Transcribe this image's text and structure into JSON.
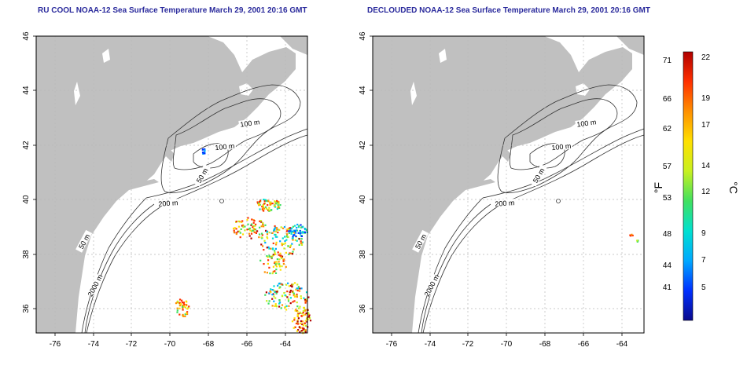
{
  "panels": [
    {
      "title": "RU COOL NOAA-12 Sea Surface Temperature March 29, 2001 20:16 GMT",
      "x_ticks": [
        "-76",
        "-74",
        "-72",
        "-70",
        "-68",
        "-66",
        "-64"
      ],
      "y_ticks": [
        "46",
        "44",
        "42",
        "40",
        "38",
        "36"
      ],
      "contour_labels": [
        "100 m",
        "100 m",
        "50 m",
        "200 m",
        "50 m",
        "2000 m"
      ]
    },
    {
      "title": "DECLOUDED NOAA-12 Sea Surface Temperature March 29, 2001 20:16 GMT",
      "x_ticks": [
        "-76",
        "-74",
        "-72",
        "-70",
        "-68",
        "-66",
        "-64"
      ],
      "y_ticks": [
        "46",
        "44",
        "42",
        "40",
        "38",
        "36"
      ],
      "contour_labels": [
        "100 m",
        "100 m",
        "50 m",
        "200 m",
        "50 m",
        "2000 m"
      ]
    }
  ],
  "colorbar": {
    "fahrenheit_ticks": [
      "71",
      "66",
      "62",
      "57",
      "53",
      "48",
      "44",
      "41"
    ],
    "celsius_ticks": [
      "22",
      "19",
      "17",
      "14",
      "12",
      "9",
      "7",
      "5"
    ],
    "fahrenheit_label": "°F",
    "celsius_label": "°C",
    "colors": [
      "#0a0a8c",
      "#0030ff",
      "#00a8ff",
      "#00e0d0",
      "#40e060",
      "#c8f020",
      "#ffe000",
      "#ff9000",
      "#ff3000",
      "#b00000"
    ]
  },
  "colors": {
    "land": "#c0c0c0",
    "contour": "#333333",
    "grid": "#b8b8b8",
    "title": "#2a2a9c"
  }
}
